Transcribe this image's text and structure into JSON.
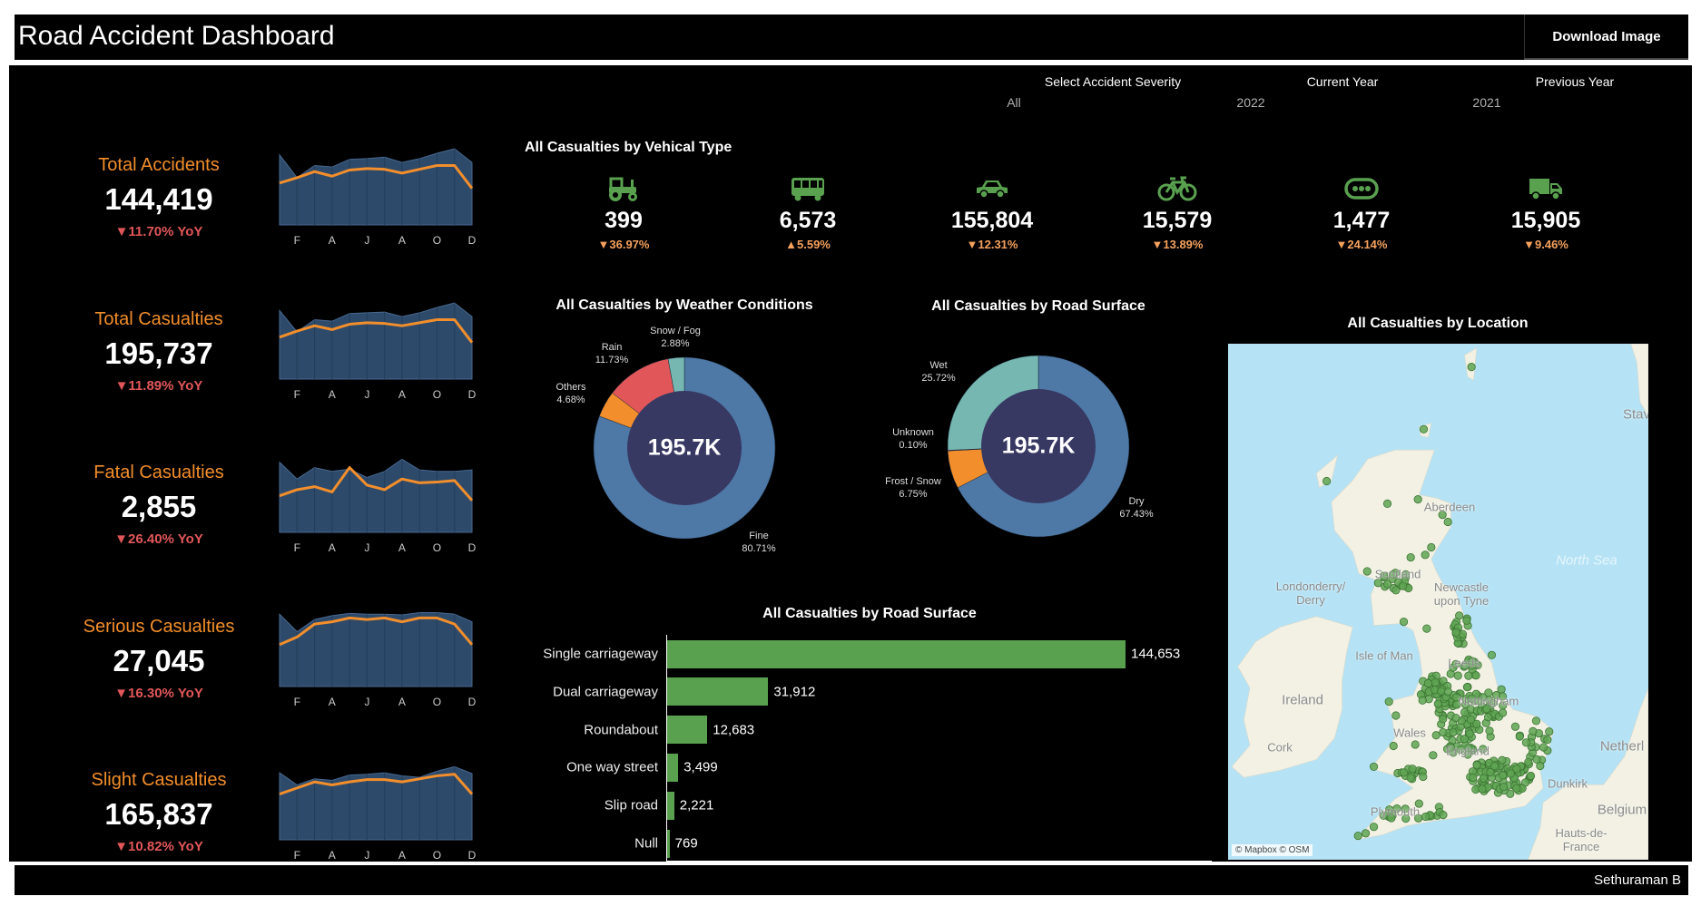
{
  "header": {
    "title": "Road Accident Dashboard",
    "download_label": "Download Image"
  },
  "footer": {
    "author": "Sethuraman B"
  },
  "filters": [
    {
      "label": "Select Accident Severity",
      "value": "All"
    },
    {
      "label": "Current Year",
      "value": "2022"
    },
    {
      "label": "Previous Year",
      "value": "2021"
    }
  ],
  "colors": {
    "accent": "#f28e2b",
    "negative": "#e15759",
    "area": "#2d4a6b",
    "line": "#f28e2b",
    "bar": "#59a14f",
    "icon": "#59a14f",
    "donut_center": "#373963"
  },
  "kpis": [
    {
      "label": "Total Accidents",
      "value": "144,419",
      "yoy": "▼11.70% YoY",
      "months": [
        "F",
        "A",
        "J",
        "A",
        "O",
        "D"
      ],
      "previous_year": [
        92,
        62,
        78,
        76,
        86,
        87,
        89,
        82,
        87,
        94,
        100,
        82
      ],
      "current_year": [
        55,
        62,
        70,
        64,
        72,
        74,
        73,
        68,
        73,
        78,
        78,
        48
      ]
    },
    {
      "label": "Total Casualties",
      "value": "195,737",
      "yoy": "▼11.89% YoY",
      "months": [
        "F",
        "A",
        "J",
        "A",
        "O",
        "D"
      ],
      "previous_year": [
        90,
        62,
        78,
        76,
        86,
        87,
        88,
        82,
        87,
        94,
        100,
        82
      ],
      "current_year": [
        55,
        63,
        70,
        65,
        72,
        74,
        73,
        70,
        74,
        78,
        78,
        48
      ]
    },
    {
      "label": "Fatal Casualties",
      "value": "2,855",
      "yoy": "▼26.40% YoY",
      "months": [
        "F",
        "A",
        "J",
        "A",
        "O",
        "D"
      ],
      "previous_year": [
        92,
        70,
        85,
        80,
        83,
        72,
        80,
        96,
        82,
        80,
        80,
        82
      ],
      "current_year": [
        48,
        56,
        60,
        53,
        85,
        62,
        56,
        70,
        65,
        66,
        68,
        42
      ]
    },
    {
      "label": "Serious Casualties",
      "value": "27,045",
      "yoy": "▼16.30% YoY",
      "months": [
        "F",
        "A",
        "J",
        "A",
        "O",
        "D"
      ],
      "previous_year": [
        95,
        72,
        88,
        93,
        96,
        95,
        95,
        94,
        97,
        97,
        95,
        85
      ],
      "current_year": [
        55,
        65,
        82,
        85,
        90,
        88,
        90,
        85,
        90,
        90,
        82,
        55
      ]
    },
    {
      "label": "Slight Casualties",
      "value": "165,837",
      "yoy": "▼10.82% YoY",
      "months": [
        "F",
        "A",
        "J",
        "A",
        "O",
        "D"
      ],
      "previous_year": [
        88,
        72,
        80,
        78,
        85,
        86,
        88,
        84,
        82,
        90,
        96,
        87
      ],
      "current_year": [
        60,
        68,
        76,
        72,
        76,
        79,
        79,
        76,
        80,
        84,
        86,
        60
      ]
    }
  ],
  "vehicle": {
    "title": "All Casualties by Vehical Type",
    "items": [
      {
        "icon": "tractor-icon",
        "value": "399",
        "change": "▼36.97%"
      },
      {
        "icon": "bus-icon",
        "value": "6,573",
        "change": "▲5.59%"
      },
      {
        "icon": "car-icon",
        "value": "155,804",
        "change": "▼12.31%"
      },
      {
        "icon": "bicycle-icon",
        "value": "15,579",
        "change": "▼13.89%"
      },
      {
        "icon": "others-icon",
        "value": "1,477",
        "change": "▼24.14%"
      },
      {
        "icon": "truck-icon",
        "value": "15,905",
        "change": "▼9.46%"
      }
    ]
  },
  "chart_data": [
    {
      "type": "pie",
      "title": "All Casualties by Weather Conditions",
      "center_label": "195.7K",
      "slices": [
        {
          "name": "Fine",
          "label": "80.71%",
          "value": 80.71,
          "color": "#4e79a7"
        },
        {
          "name": "Others",
          "label": "4.68%",
          "value": 4.68,
          "color": "#f28e2b"
        },
        {
          "name": "Rain",
          "label": "11.73%",
          "value": 11.73,
          "color": "#e15759"
        },
        {
          "name": "Snow / Fog",
          "label": "2.88%",
          "value": 2.88,
          "color": "#76b7b2"
        }
      ]
    },
    {
      "type": "pie",
      "title": "All Casualties by Road Surface",
      "center_label": "195.7K",
      "slices": [
        {
          "name": "Dry",
          "label": "67.43%",
          "value": 67.43,
          "color": "#4e79a7"
        },
        {
          "name": "Frost / Snow",
          "label": "6.75%",
          "value": 6.75,
          "color": "#f28e2b"
        },
        {
          "name": "Unknown",
          "label": "0.10%",
          "value": 0.1,
          "color": "#e15759"
        },
        {
          "name": "Wet",
          "label": "25.72%",
          "value": 25.72,
          "color": "#76b7b2"
        }
      ]
    },
    {
      "type": "bar",
      "title": "All Casualties by Road Surface",
      "categories": [
        "Single carriageway",
        "Dual carriageway",
        "Roundabout",
        "One way street",
        "Slip road",
        "Null"
      ],
      "values": [
        144653,
        31912,
        12683,
        3499,
        2221,
        769
      ],
      "value_labels": [
        "144,653",
        "31,912",
        "12,683",
        "3,499",
        "2,221",
        "769"
      ]
    }
  ],
  "map": {
    "title": "All Casualties by Location",
    "attribution": "© Mapbox © OSM",
    "places": [
      "Aberdeen",
      "Scotland",
      "Newcastle upon Tyne",
      "Londonderry/ Derry",
      "Isle of Man",
      "Leeds",
      "Ireland",
      "Nottingham",
      "Wales",
      "England",
      "Cork",
      "Plymouth",
      "North Sea",
      "Netherl",
      "Dunkirk",
      "Belgium",
      "Hauts-de- France",
      "Stav"
    ]
  }
}
